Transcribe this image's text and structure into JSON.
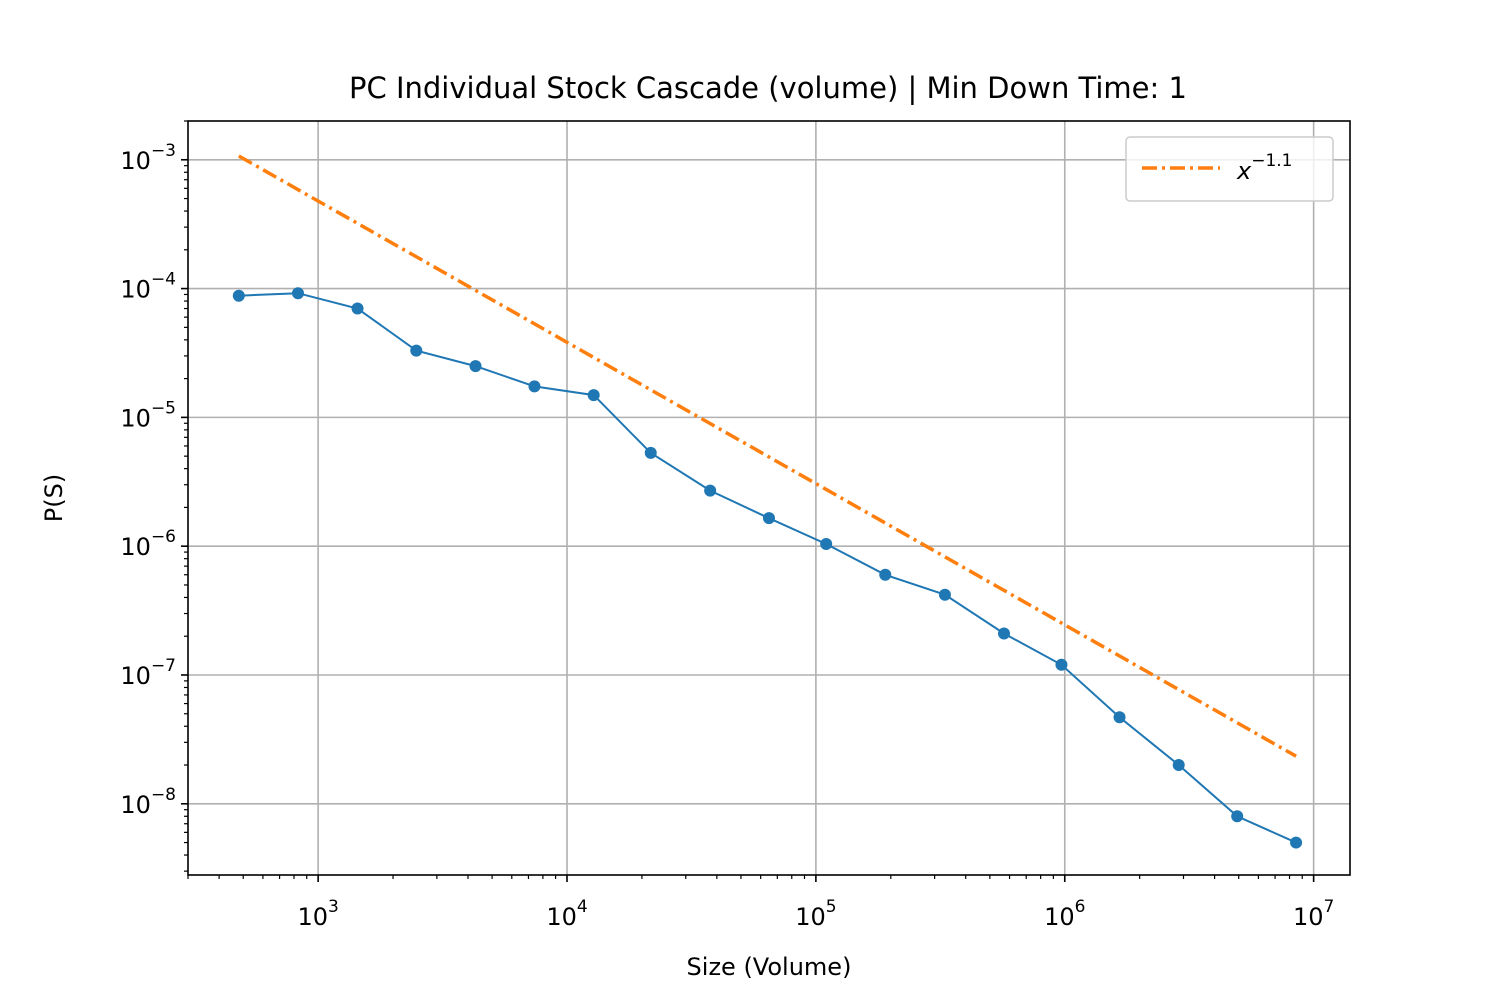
{
  "chart_data": {
    "type": "line",
    "title": "PC Individual Stock Cascade (volume) | Min Down Time: 1",
    "xlabel": "Size (Volume)",
    "ylabel": "P(S)",
    "xscale": "log",
    "yscale": "log",
    "xlim": [
      300,
      14000000
    ],
    "ylim": [
      2.8e-09,
      0.002
    ],
    "grid": true,
    "legend": {
      "position": "top-right",
      "entries": [
        {
          "base": "x",
          "exp": "−1.1",
          "color": "#ff7f0e",
          "style": "dash-dot"
        }
      ]
    },
    "x_ticks": [
      {
        "base": "10",
        "exp": "3",
        "value": 1000
      },
      {
        "base": "10",
        "exp": "4",
        "value": 10000
      },
      {
        "base": "10",
        "exp": "5",
        "value": 100000
      },
      {
        "base": "10",
        "exp": "6",
        "value": 1000000
      },
      {
        "base": "10",
        "exp": "7",
        "value": 10000000
      }
    ],
    "y_ticks": [
      {
        "base": "10",
        "exp": "−3",
        "value": 0.001
      },
      {
        "base": "10",
        "exp": "−4",
        "value": 0.0001
      },
      {
        "base": "10",
        "exp": "−5",
        "value": 1e-05
      },
      {
        "base": "10",
        "exp": "−6",
        "value": 1e-06
      },
      {
        "base": "10",
        "exp": "−7",
        "value": 1e-07
      },
      {
        "base": "10",
        "exp": "−8",
        "value": 1e-08
      }
    ],
    "series": [
      {
        "color": "#1f77b4",
        "x": [
          480,
          830,
          1440,
          2480,
          4290,
          7400,
          12800,
          21700,
          37600,
          64800,
          110000,
          190000,
          330000,
          570000,
          970000,
          1660000,
          2870000,
          4930000,
          8500000
        ],
        "y": [
          8.8e-05,
          9.2e-05,
          7e-05,
          3.3e-05,
          2.5e-05,
          1.74e-05,
          1.49e-05,
          5.3e-06,
          2.7e-06,
          1.65e-06,
          1.04e-06,
          6e-07,
          4.2e-07,
          2.1e-07,
          1.2e-07,
          4.7e-08,
          2e-08,
          8e-09,
          5e-09
        ]
      },
      {
        "color": "#ff7f0e",
        "style": "dash-dot",
        "x": [
          480,
          8500000
        ],
        "y": [
          0.00107,
          2.34e-08
        ]
      }
    ]
  }
}
